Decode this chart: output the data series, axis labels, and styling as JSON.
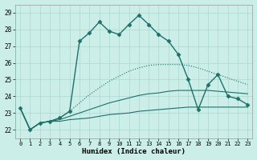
{
  "xlabel": "Humidex (Indice chaleur)",
  "background_color": "#cceee8",
  "grid_color": "#aad8d0",
  "line_color": "#1e7068",
  "xlim": [
    -0.5,
    23.5
  ],
  "ylim": [
    21.5,
    29.5
  ],
  "yticks": [
    22,
    23,
    24,
    25,
    26,
    27,
    28,
    29
  ],
  "xticks": [
    0,
    1,
    2,
    3,
    4,
    5,
    6,
    7,
    8,
    9,
    10,
    11,
    12,
    13,
    14,
    15,
    16,
    17,
    18,
    19,
    20,
    21,
    22,
    23
  ],
  "lines": [
    {
      "x": [
        0,
        1,
        2,
        3,
        4,
        5,
        6,
        7,
        8,
        9,
        10,
        11,
        12,
        13,
        14,
        15,
        16,
        17,
        18,
        19,
        20,
        21,
        22,
        23
      ],
      "y": [
        23.3,
        22.0,
        22.4,
        22.5,
        22.7,
        23.1,
        27.3,
        27.8,
        28.45,
        27.9,
        27.7,
        28.3,
        28.85,
        28.3,
        27.7,
        27.3,
        26.5,
        25.0,
        23.2,
        24.7,
        25.3,
        24.0,
        23.85,
        23.5
      ],
      "marker": "D",
      "markersize": 2.5,
      "linewidth": 1.0,
      "linestyle": "-"
    },
    {
      "x": [
        0,
        1,
        2,
        3,
        4,
        5,
        6,
        7,
        8,
        9,
        10,
        11,
        12,
        13,
        14,
        15,
        16,
        17,
        18,
        19,
        20,
        21,
        22,
        23
      ],
      "y": [
        23.3,
        22.0,
        22.4,
        22.5,
        22.7,
        23.1,
        23.6,
        24.1,
        24.5,
        24.9,
        25.2,
        25.5,
        25.7,
        25.85,
        25.9,
        25.9,
        25.9,
        25.85,
        25.7,
        25.5,
        25.3,
        25.1,
        24.9,
        24.7
      ],
      "marker": null,
      "markersize": 0,
      "linewidth": 0.8,
      "linestyle": ":"
    },
    {
      "x": [
        0,
        1,
        2,
        3,
        4,
        5,
        6,
        7,
        8,
        9,
        10,
        11,
        12,
        13,
        14,
        15,
        16,
        17,
        18,
        19,
        20,
        21,
        22,
        23
      ],
      "y": [
        23.3,
        22.0,
        22.4,
        22.5,
        22.6,
        22.8,
        23.0,
        23.2,
        23.4,
        23.6,
        23.75,
        23.9,
        24.05,
        24.15,
        24.2,
        24.3,
        24.35,
        24.35,
        24.35,
        24.35,
        24.3,
        24.25,
        24.2,
        24.15
      ],
      "marker": null,
      "markersize": 0,
      "linewidth": 0.8,
      "linestyle": "-"
    },
    {
      "x": [
        0,
        1,
        2,
        3,
        4,
        5,
        6,
        7,
        8,
        9,
        10,
        11,
        12,
        13,
        14,
        15,
        16,
        17,
        18,
        19,
        20,
        21,
        22,
        23
      ],
      "y": [
        23.3,
        22.0,
        22.4,
        22.5,
        22.5,
        22.6,
        22.65,
        22.7,
        22.8,
        22.9,
        22.95,
        23.0,
        23.1,
        23.15,
        23.2,
        23.25,
        23.3,
        23.35,
        23.35,
        23.35,
        23.35,
        23.35,
        23.35,
        23.35
      ],
      "marker": null,
      "markersize": 0,
      "linewidth": 0.8,
      "linestyle": "-"
    }
  ]
}
